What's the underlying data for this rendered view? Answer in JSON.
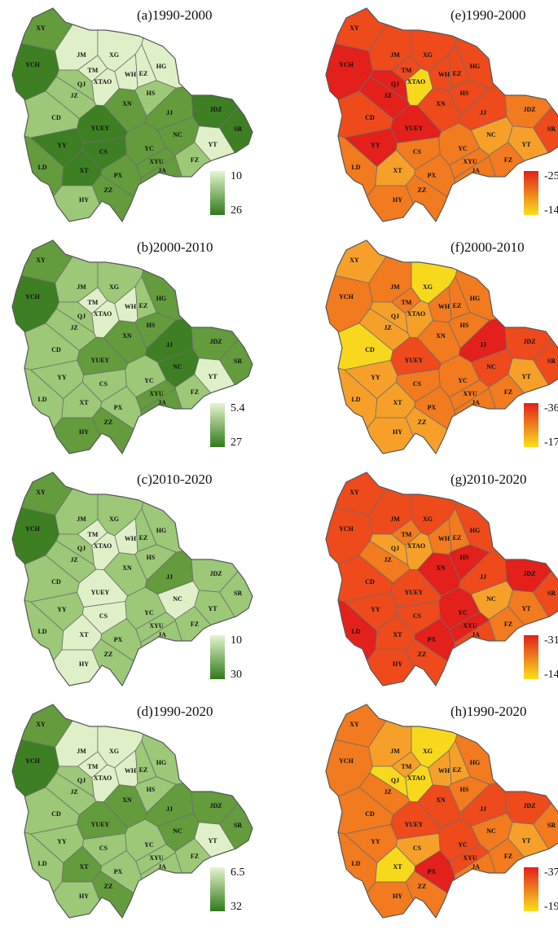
{
  "regions": [
    "XY",
    "YCH",
    "JM",
    "TM",
    "XG",
    "HG",
    "WH",
    "EZ",
    "XTAO",
    "QJ",
    "JZ",
    "HS",
    "XN",
    "CD",
    "YUEY",
    "JJ",
    "JDZ",
    "SR",
    "NC",
    "YY",
    "CS",
    "YC",
    "YT",
    "LD",
    "XT",
    "XYU",
    "JA",
    "FZ",
    "PX",
    "ZZ",
    "HY"
  ],
  "panels": [
    {
      "title": "(a)1990-2000",
      "legend": [
        10,
        26
      ],
      "legend_colors": [
        "#e5f5d0",
        "#2f7a1a"
      ],
      "colors": [
        "#639b3d",
        "#3d7f22",
        "#dff0c8",
        "#dff0c8",
        "#dff0c8",
        "#dff0c8",
        "#dff0c8",
        "#dff0c8",
        "#dff0c8",
        "#9cc878",
        "#9cc878",
        "#9cc878",
        "#639b3d",
        "#9cc878",
        "#3d7f22",
        "#639b3d",
        "#3d7f22",
        "#3d7f22",
        "#639b3d",
        "#3d7f22",
        "#3d7f22",
        "#639b3d",
        "#dff0c8",
        "#639b3d",
        "#3d7f22",
        "#639b3d",
        "#639b3d",
        "#9cc878",
        "#639b3d",
        "#639b3d",
        "#9cc878"
      ]
    },
    {
      "title": "(b)2000-2010",
      "legend": [
        5.4,
        27
      ],
      "legend_colors": [
        "#e5f5d0",
        "#2f7a1a"
      ],
      "colors": [
        "#639b3d",
        "#3d7f22",
        "#9cc878",
        "#dff0c8",
        "#9cc878",
        "#639b3d",
        "#dff0c8",
        "#9cc878",
        "#dff0c8",
        "#9cc878",
        "#9cc878",
        "#639b3d",
        "#639b3d",
        "#9cc878",
        "#639b3d",
        "#3d7f22",
        "#639b3d",
        "#639b3d",
        "#3d7f22",
        "#9cc878",
        "#9cc878",
        "#9cc878",
        "#dff0c8",
        "#9cc878",
        "#9cc878",
        "#639b3d",
        "#639b3d",
        "#9cc878",
        "#9cc878",
        "#639b3d",
        "#639b3d"
      ]
    },
    {
      "title": "(c)2010-2020",
      "legend": [
        10,
        30
      ],
      "legend_colors": [
        "#e5f5d0",
        "#2f7a1a"
      ],
      "colors": [
        "#639b3d",
        "#3d7f22",
        "#9cc878",
        "#dff0c8",
        "#9cc878",
        "#9cc878",
        "#dff0c8",
        "#9cc878",
        "#dff0c8",
        "#9cc878",
        "#9cc878",
        "#9cc878",
        "#9cc878",
        "#9cc878",
        "#dff0c8",
        "#639b3d",
        "#9cc878",
        "#9cc878",
        "#dff0c8",
        "#9cc878",
        "#dff0c8",
        "#9cc878",
        "#9cc878",
        "#9cc878",
        "#dff0c8",
        "#9cc878",
        "#9cc878",
        "#9cc878",
        "#9cc878",
        "#9cc878",
        "#dff0c8"
      ]
    },
    {
      "title": "(d)1990-2020",
      "legend": [
        6.5,
        32
      ],
      "legend_colors": [
        "#e5f5d0",
        "#2f7a1a"
      ],
      "colors": [
        "#639b3d",
        "#3d7f22",
        "#dff0c8",
        "#dff0c8",
        "#dff0c8",
        "#9cc878",
        "#dff0c8",
        "#9cc878",
        "#dff0c8",
        "#9cc878",
        "#9cc878",
        "#9cc878",
        "#639b3d",
        "#9cc878",
        "#639b3d",
        "#639b3d",
        "#639b3d",
        "#639b3d",
        "#639b3d",
        "#9cc878",
        "#9cc878",
        "#9cc878",
        "#dff0c8",
        "#9cc878",
        "#639b3d",
        "#9cc878",
        "#9cc878",
        "#9cc878",
        "#9cc878",
        "#639b3d",
        "#9cc878"
      ]
    },
    {
      "title": "(e)1990-2000",
      "legend": [
        -25,
        -14
      ],
      "legend_colors": [
        "#e3201b",
        "#f8e01c"
      ],
      "colors": [
        "#ee4a1c",
        "#e3201b",
        "#ee4a1c",
        "#ee4a1c",
        "#ee4a1c",
        "#ee4a1c",
        "#ee4a1c",
        "#ee4a1c",
        "#f8d81c",
        "#e3201b",
        "#e3201b",
        "#ee4a1c",
        "#ee4a1c",
        "#ee4a1c",
        "#e3201b",
        "#ee4a1c",
        "#f27a1f",
        "#ee4a1c",
        "#f6a02a",
        "#e3201b",
        "#f27a1f",
        "#f27a1f",
        "#f6a02a",
        "#f27a1f",
        "#f6a02a",
        "#f27a1f",
        "#f27a1f",
        "#f27a1f",
        "#f27a1f",
        "#f27a1f",
        "#f27a1f"
      ]
    },
    {
      "title": "(f)2000-2010",
      "legend": [
        -36,
        -17
      ],
      "legend_colors": [
        "#e3201b",
        "#f8e01c"
      ],
      "colors": [
        "#f6a02a",
        "#f27a1f",
        "#f27a1f",
        "#f27a1f",
        "#f8d81c",
        "#f27a1f",
        "#f27a1f",
        "#f27a1f",
        "#f6a02a",
        "#f6a02a",
        "#f6a02a",
        "#f27a1f",
        "#f27a1f",
        "#f8d81c",
        "#ee4a1c",
        "#e3201b",
        "#ee4a1c",
        "#ee4a1c",
        "#ee4a1c",
        "#f6a02a",
        "#f27a1f",
        "#f27a1f",
        "#f6a02a",
        "#f6a02a",
        "#f6a02a",
        "#f27a1f",
        "#f27a1f",
        "#f27a1f",
        "#f27a1f",
        "#f6a02a",
        "#f6a02a"
      ]
    },
    {
      "title": "(g)2010-2020",
      "legend": [
        -31,
        -14
      ],
      "legend_colors": [
        "#e3201b",
        "#f8e01c"
      ],
      "colors": [
        "#ee4a1c",
        "#ee4a1c",
        "#ee4a1c",
        "#f27a1f",
        "#ee4a1c",
        "#ee4a1c",
        "#f27a1f",
        "#f27a1f",
        "#f6a02a",
        "#f6a02a",
        "#f27a1f",
        "#e3201b",
        "#e3201b",
        "#ee4a1c",
        "#ee4a1c",
        "#ee4a1c",
        "#e3201b",
        "#ee4a1c",
        "#f6a02a",
        "#ee4a1c",
        "#ee4a1c",
        "#e3201b",
        "#f27a1f",
        "#e3201b",
        "#ee4a1c",
        "#e3201b",
        "#ee4a1c",
        "#f27a1f",
        "#e3201b",
        "#ee4a1c",
        "#ee4a1c"
      ]
    },
    {
      "title": "(h)1990-2020",
      "legend": [
        -37,
        -19
      ],
      "legend_colors": [
        "#e3201b",
        "#f8e01c"
      ],
      "colors": [
        "#f27a1f",
        "#f27a1f",
        "#f6a02a",
        "#f6a02a",
        "#f8d81c",
        "#f27a1f",
        "#f6a02a",
        "#f6a02a",
        "#f8d81c",
        "#f8d81c",
        "#f27a1f",
        "#f27a1f",
        "#ee4a1c",
        "#f27a1f",
        "#ee4a1c",
        "#ee4a1c",
        "#ee4a1c",
        "#f27a1f",
        "#f27a1f",
        "#f27a1f",
        "#f6a02a",
        "#ee4a1c",
        "#f6a02a",
        "#f27a1f",
        "#f8d81c",
        "#ee4a1c",
        "#f27a1f",
        "#f27a1f",
        "#e3201b",
        "#f27a1f",
        "#f27a1f"
      ]
    }
  ]
}
